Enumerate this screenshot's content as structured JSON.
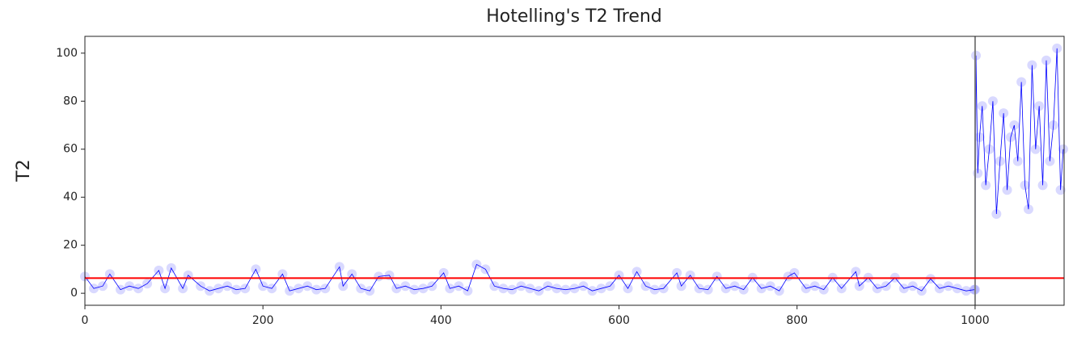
{
  "chart_data": {
    "type": "line",
    "title": "Hotelling's T2 Trend",
    "ylabel": "T2",
    "x": [
      0,
      10,
      20,
      28,
      40,
      50,
      60,
      70,
      83,
      90,
      97,
      110,
      116,
      130,
      140,
      150,
      160,
      170,
      180,
      192,
      200,
      210,
      222,
      230,
      240,
      250,
      260,
      270,
      286,
      290,
      300,
      310,
      320,
      330,
      342,
      350,
      360,
      370,
      380,
      390,
      403,
      410,
      420,
      430,
      440,
      450,
      460,
      470,
      480,
      490,
      500,
      510,
      520,
      530,
      540,
      550,
      560,
      570,
      580,
      590,
      600,
      610,
      620,
      630,
      640,
      650,
      665,
      670,
      680,
      690,
      700,
      710,
      720,
      730,
      740,
      750,
      760,
      770,
      780,
      790,
      797,
      810,
      820,
      830,
      840,
      850,
      866,
      870,
      880,
      890,
      900,
      910,
      920,
      930,
      940,
      950,
      960,
      970,
      980,
      990,
      999,
      1000,
      1001,
      1003,
      1005,
      1008,
      1012,
      1016,
      1020,
      1024,
      1028,
      1032,
      1036,
      1040,
      1044,
      1048,
      1052,
      1056,
      1060,
      1064,
      1068,
      1072,
      1076,
      1080,
      1084,
      1088,
      1092,
      1096,
      1099
    ],
    "values": [
      7,
      2,
      3,
      8,
      1.5,
      3,
      2,
      4,
      9.5,
      2,
      10.5,
      2,
      7.5,
      3,
      1,
      2,
      3,
      1.5,
      2,
      10,
      3,
      2,
      8,
      1,
      2,
      3,
      1.5,
      2,
      11,
      3,
      8,
      2,
      1,
      7,
      7.5,
      2,
      3,
      1.5,
      2,
      3,
      8.5,
      2,
      3,
      1,
      12,
      10,
      3,
      2,
      1.5,
      3,
      2,
      1,
      3,
      2,
      1.5,
      2,
      3,
      1,
      2,
      3,
      7.5,
      2,
      9,
      3,
      1.5,
      2,
      8.5,
      3,
      7.5,
      2,
      1.5,
      7,
      2,
      3,
      1.5,
      6.5,
      2,
      3,
      1,
      7,
      8.5,
      2,
      3,
      1.5,
      6.5,
      2,
      9,
      3,
      6.5,
      2,
      3,
      6.5,
      2,
      3,
      1,
      6,
      2,
      3,
      2,
      1,
      1.5,
      1.5,
      99,
      50,
      65,
      78,
      45,
      60,
      80,
      33,
      55,
      75,
      43,
      65,
      70,
      55,
      88,
      45,
      35,
      95,
      60,
      78,
      45,
      97,
      55,
      70,
      102,
      43,
      60
    ],
    "color": "blue",
    "hline": {
      "value": 6.3,
      "color": "red"
    },
    "vline": {
      "value": 1000,
      "color": "gray"
    },
    "xlim": [
      0,
      1100
    ],
    "xticks": [
      0,
      200,
      400,
      600,
      800,
      1000
    ],
    "ylim": [
      -5,
      107
    ],
    "yticks": [
      0,
      20,
      40,
      60,
      80,
      100
    ]
  }
}
